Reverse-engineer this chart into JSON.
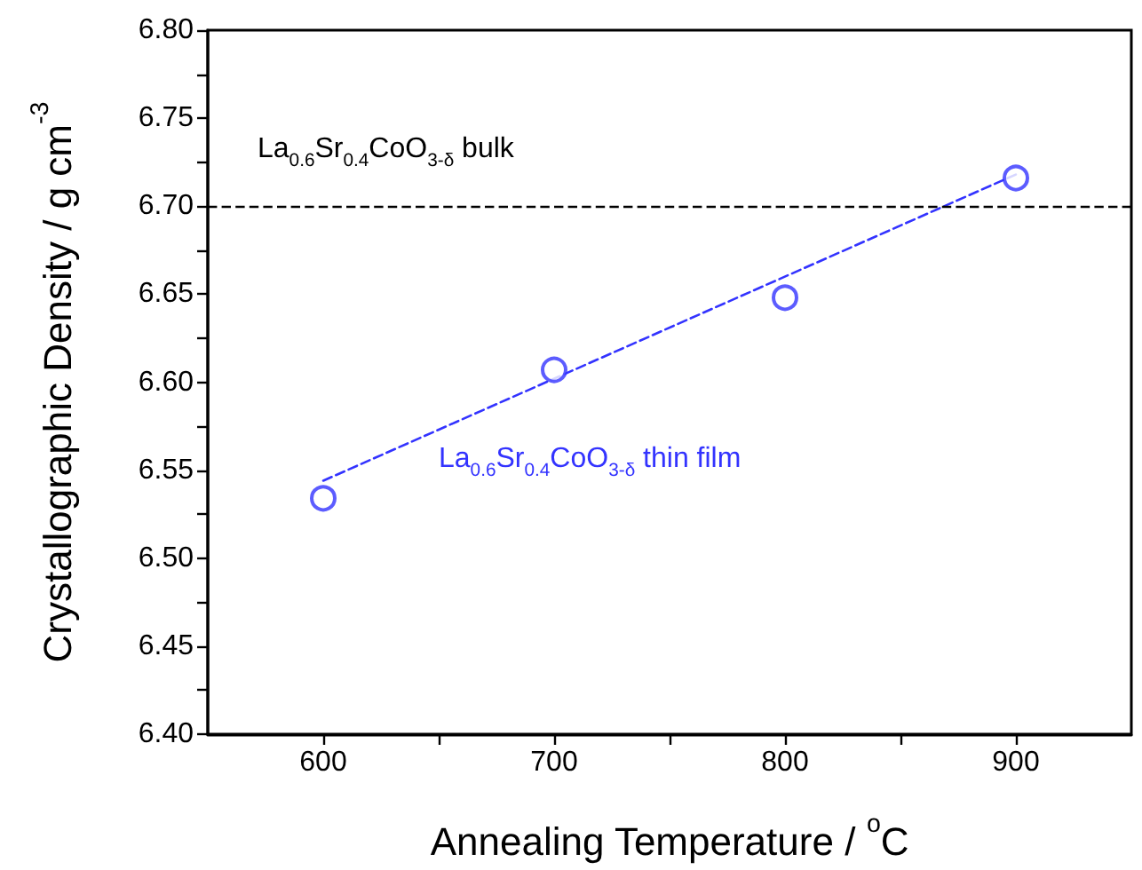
{
  "chart_data": {
    "type": "scatter",
    "xlabel": "Annealing Temperature / $^{o}$C",
    "ylabel": "Crystallographic Density / g cm$^{-3}$",
    "x": [
      600,
      700,
      800,
      900
    ],
    "series": [
      {
        "type": "scatter",
        "name": "La$_{0.6}$Sr$_{0.4}$CoO$_{3-δ}$ thin film",
        "color": "#3333ff",
        "values": [
          6.534,
          6.607,
          6.648,
          6.716
        ],
        "marker": "circle"
      },
      {
        "type": "line",
        "color": "#3333ff",
        "x": [
          600,
          900
        ],
        "values": [
          6.544,
          6.718
        ],
        "marker": "none",
        "line_style": "dashed"
      }
    ],
    "ref_lines": [
      {
        "axis": "y",
        "value": 6.7,
        "label": "La$_{0.6}$Sr$_{0.4}$CoO$_{3-δ}$ bulk",
        "color": "#000000",
        "line_style": "dashed"
      }
    ],
    "xlim": [
      550,
      950
    ],
    "xticks": [
      600,
      {
        "value": 650,
        "label": null
      },
      700,
      {
        "value": 750,
        "label": null
      },
      800,
      {
        "value": 850,
        "label": null
      },
      900
    ],
    "ylim": [
      6.4,
      6.8
    ],
    "yticks": [
      {
        "value": 6.4,
        "label": "6.40"
      },
      {
        "value": 6.425,
        "label": null
      },
      {
        "value": 6.45,
        "label": "6.45"
      },
      {
        "value": 6.475,
        "label": null
      },
      {
        "value": 6.5,
        "label": "6.50"
      },
      {
        "value": 6.525,
        "label": null
      },
      {
        "value": 6.55,
        "label": "6.55"
      },
      {
        "value": 6.575,
        "label": null
      },
      {
        "value": 6.6,
        "label": "6.60"
      },
      {
        "value": 6.625,
        "label": null
      },
      {
        "value": 6.65,
        "label": "6.65"
      },
      {
        "value": 6.675,
        "label": null
      },
      {
        "value": 6.7,
        "label": "6.70"
      },
      {
        "value": 6.725,
        "label": null
      },
      {
        "value": 6.75,
        "label": "6.75"
      },
      {
        "value": 6.775,
        "label": null
      },
      {
        "value": 6.8,
        "label": "6.80"
      }
    ],
    "grid": false,
    "legend": false
  }
}
